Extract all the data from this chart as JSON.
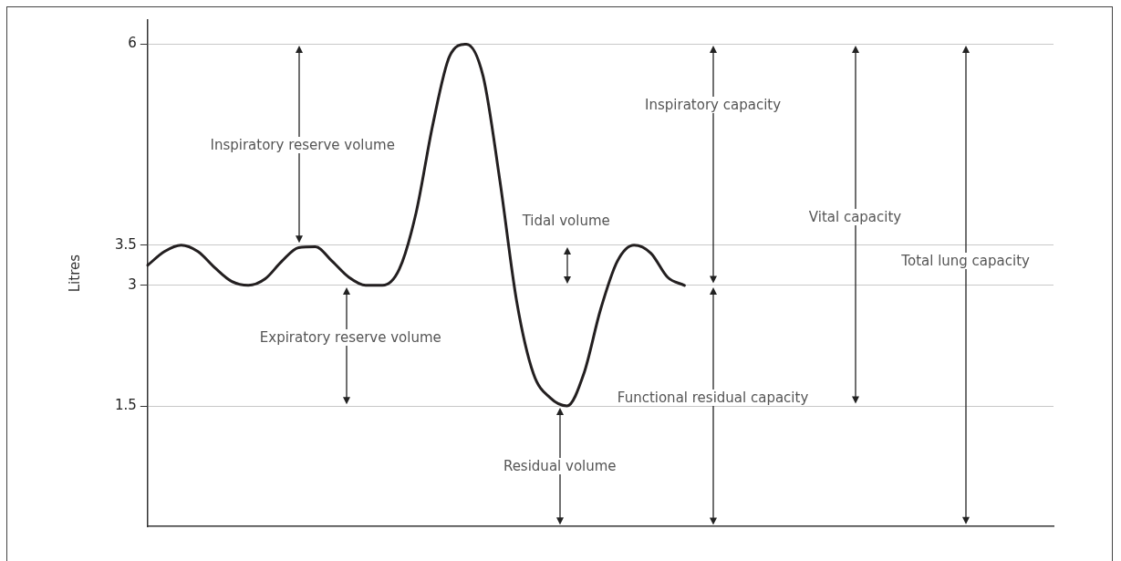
{
  "chart_data": {
    "type": "line",
    "ylabel": "Litres",
    "categories": [
      null,
      null,
      null,
      null,
      null,
      null,
      null,
      null,
      null,
      null,
      null,
      null,
      null,
      null,
      null,
      null,
      null,
      null,
      null,
      null,
      null,
      null,
      null,
      null,
      null,
      null,
      null,
      null,
      null,
      null,
      null,
      null,
      null,
      null,
      null,
      null,
      null,
      null,
      null,
      null,
      null,
      null,
      null,
      null,
      null,
      null,
      null,
      null,
      null,
      null,
      null,
      null,
      null,
      null,
      null
    ],
    "series": [
      {
        "color": "#231f20",
        "values": [
          3.25,
          3.42,
          3.5,
          3.42,
          3.22,
          3.05,
          3.0,
          3.08,
          3.3,
          3.47,
          3.48,
          3.3,
          3.1,
          3.0,
          3.0,
          3.2,
          3.9,
          5.0,
          5.85,
          6.0,
          5.6,
          4.3,
          2.8,
          1.9,
          1.6,
          1.5,
          1.9,
          2.7,
          3.3,
          3.5,
          3.4,
          3.1,
          3.0,
          null,
          null,
          null,
          null,
          null,
          null,
          null,
          null,
          null,
          null,
          null,
          null,
          null,
          null,
          null,
          null,
          null,
          null,
          null,
          null,
          null,
          null
        ]
      }
    ],
    "ylim": [
      0,
      6.3
    ],
    "yticks": [
      1.5,
      3,
      3.5,
      6
    ],
    "grid": "y",
    "legend": false,
    "marker": "none",
    "line_style": "solid",
    "annotations": [
      "Inspiratory reserve volume",
      "Expiratory reserve volume",
      "Tidal volume",
      "Residual volume",
      "Inspiratory capacity",
      "Functional residual capacity",
      "Vital capacity",
      "Total lung capacity"
    ]
  }
}
